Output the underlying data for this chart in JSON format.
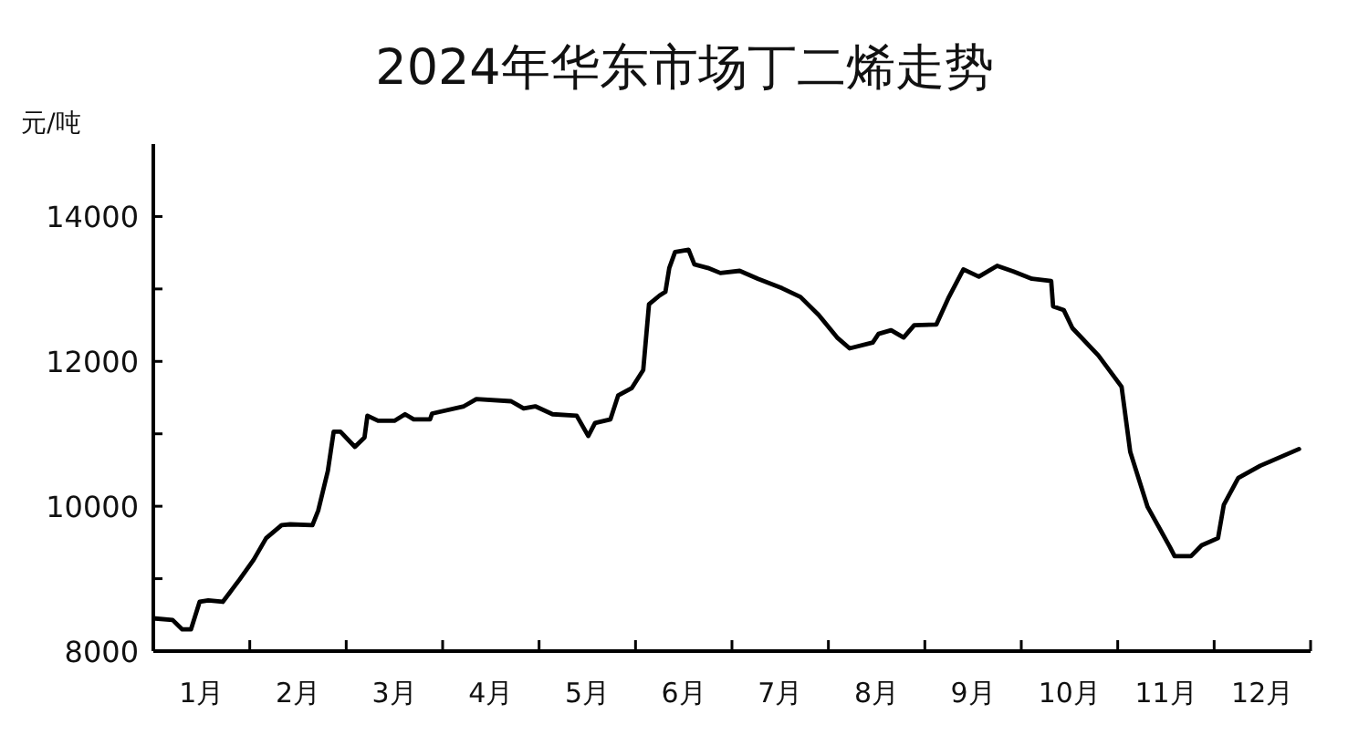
{
  "chart_data": {
    "type": "line",
    "title": "2024年华东市场丁二烯走势",
    "ylabel": "元/吨",
    "xlim": [
      0,
      12
    ],
    "ylim": [
      8000,
      15000
    ],
    "xticks": [
      {
        "value": 0,
        "label": null
      },
      {
        "value": 0.5,
        "label": "1月"
      },
      {
        "value": 1,
        "label": null
      },
      {
        "value": 1.5,
        "label": "2月"
      },
      {
        "value": 2,
        "label": null
      },
      {
        "value": 2.5,
        "label": "3月"
      },
      {
        "value": 3,
        "label": null
      },
      {
        "value": 3.5,
        "label": "4月"
      },
      {
        "value": 4,
        "label": null
      },
      {
        "value": 4.5,
        "label": "5月"
      },
      {
        "value": 5,
        "label": null
      },
      {
        "value": 5.5,
        "label": "6月"
      },
      {
        "value": 6,
        "label": null
      },
      {
        "value": 6.5,
        "label": "7月"
      },
      {
        "value": 7,
        "label": null
      },
      {
        "value": 7.5,
        "label": "8月"
      },
      {
        "value": 8,
        "label": null
      },
      {
        "value": 8.5,
        "label": "9月"
      },
      {
        "value": 9,
        "label": null
      },
      {
        "value": 9.5,
        "label": "10月"
      },
      {
        "value": 10,
        "label": null
      },
      {
        "value": 10.5,
        "label": "11月"
      },
      {
        "value": 11,
        "label": null
      },
      {
        "value": 11.5,
        "label": "12月"
      },
      {
        "value": 12,
        "label": null
      }
    ],
    "yticks": [
      8000,
      {
        "value": 9000,
        "label": null
      },
      10000,
      {
        "value": 11000,
        "label": null
      },
      12000,
      {
        "value": 13000,
        "label": null
      },
      14000
    ],
    "grid": false,
    "marker": "none",
    "line_style": "solid",
    "series": [
      {
        "color": "#000000",
        "x": [
          0.02,
          0.2,
          0.3,
          0.39,
          0.48,
          0.57,
          0.72,
          0.89,
          1.04,
          1.17,
          1.33,
          1.42,
          1.65,
          1.71,
          1.81,
          1.87,
          1.94,
          2.09,
          2.19,
          2.22,
          2.33,
          2.5,
          2.61,
          2.7,
          2.87,
          2.89,
          3.22,
          3.35,
          3.71,
          3.84,
          3.96,
          4.14,
          4.39,
          4.51,
          4.58,
          4.74,
          4.82,
          4.96,
          5.08,
          5.14,
          5.25,
          5.31,
          5.35,
          5.41,
          5.55,
          5.61,
          5.75,
          5.88,
          6.08,
          6.27,
          6.52,
          6.71,
          6.9,
          7.09,
          7.22,
          7.46,
          7.52,
          7.65,
          7.78,
          7.89,
          8.12,
          8.25,
          8.4,
          8.56,
          8.75,
          8.92,
          9.11,
          9.31,
          9.33,
          9.44,
          9.53,
          9.8,
          10.04,
          10.13,
          10.31,
          10.54,
          10.59,
          10.76,
          10.87,
          11.04,
          11.1,
          11.25,
          11.48,
          11.88
        ],
        "values": [
          8450,
          8430,
          8300,
          8300,
          8680,
          8700,
          8680,
          8980,
          9260,
          9560,
          9740,
          9750,
          9740,
          9940,
          10490,
          11030,
          11030,
          10820,
          10950,
          11250,
          11180,
          11180,
          11270,
          11200,
          11200,
          11280,
          11380,
          11480,
          11450,
          11350,
          11380,
          11270,
          11250,
          10970,
          11150,
          11200,
          11530,
          11630,
          11880,
          12790,
          12910,
          12960,
          13290,
          13510,
          13540,
          13340,
          13290,
          13220,
          13250,
          13140,
          13010,
          12890,
          12640,
          12330,
          12180,
          12260,
          12380,
          12430,
          12330,
          12500,
          12510,
          12890,
          13270,
          13170,
          13320,
          13240,
          13140,
          13110,
          12760,
          12710,
          12460,
          12080,
          11650,
          10750,
          9990,
          9440,
          9310,
          9310,
          9460,
          9560,
          10020,
          10390,
          10560,
          10790
        ]
      }
    ]
  }
}
